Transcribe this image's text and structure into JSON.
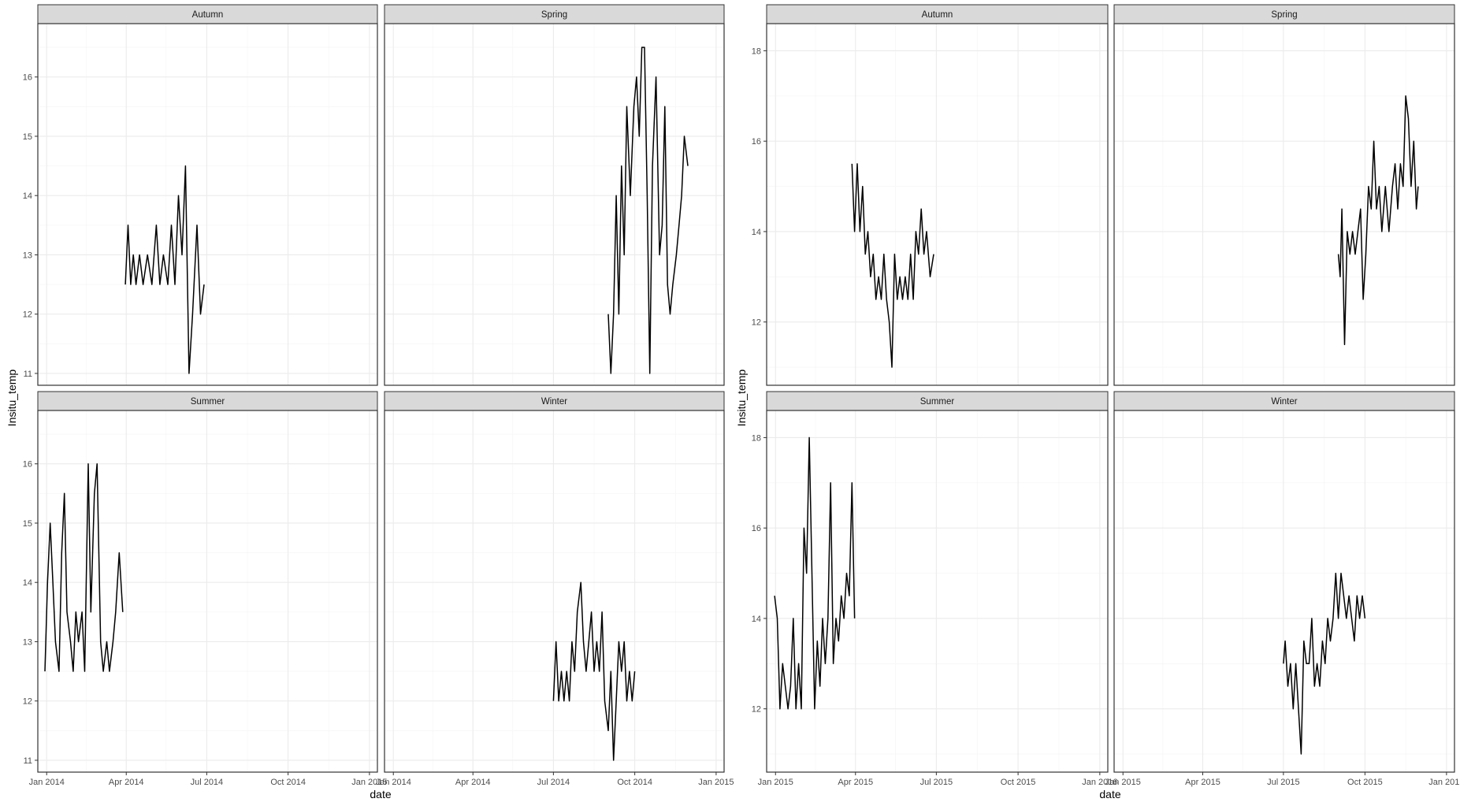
{
  "chart_data": [
    {
      "type": "line",
      "xlabel": "date",
      "ylabel": "Insitu_temp",
      "xlim": [
        "2013-12-22",
        "2015-01-10"
      ],
      "ylim": [
        10.8,
        16.9
      ],
      "x_ticks": [
        "2014-01-01",
        "2014-04-01",
        "2014-07-01",
        "2014-10-01",
        "2015-01-01"
      ],
      "x_tick_labels": [
        "Jan 2014",
        "Apr 2014",
        "Jul 2014",
        "Oct 2014",
        "Jan 2015"
      ],
      "y_ticks": [
        11,
        12,
        13,
        14,
        15,
        16
      ],
      "grid": true,
      "facets": [
        {
          "label": "Autumn",
          "x": [
            "2014-03-31",
            "2014-04-03",
            "2014-04-06",
            "2014-04-09",
            "2014-04-12",
            "2014-04-16",
            "2014-04-20",
            "2014-04-25",
            "2014-04-30",
            "2014-05-05",
            "2014-05-09",
            "2014-05-13",
            "2014-05-18",
            "2014-05-22",
            "2014-05-26",
            "2014-05-30",
            "2014-06-03",
            "2014-06-07",
            "2014-06-11",
            "2014-06-15",
            "2014-06-20",
            "2014-06-24",
            "2014-06-28"
          ],
          "y": [
            12.5,
            13.5,
            12.5,
            13.0,
            12.5,
            13.0,
            12.5,
            13.0,
            12.5,
            13.5,
            12.5,
            13.0,
            12.5,
            13.5,
            12.5,
            14.0,
            13.0,
            14.5,
            11.0,
            12.0,
            13.5,
            12.0,
            12.5
          ]
        },
        {
          "label": "Spring",
          "x": [
            "2014-09-01",
            "2014-09-04",
            "2014-09-07",
            "2014-09-10",
            "2014-09-13",
            "2014-09-16",
            "2014-09-19",
            "2014-09-22",
            "2014-09-26",
            "2014-09-30",
            "2014-10-03",
            "2014-10-06",
            "2014-10-09",
            "2014-10-12",
            "2014-10-15",
            "2014-10-18",
            "2014-10-21",
            "2014-10-25",
            "2014-10-29",
            "2014-11-01",
            "2014-11-04",
            "2014-11-07",
            "2014-11-10",
            "2014-11-13",
            "2014-11-17",
            "2014-11-20",
            "2014-11-23",
            "2014-11-26",
            "2014-11-30"
          ],
          "y": [
            12.0,
            11.0,
            12.0,
            14.0,
            12.0,
            14.5,
            13.0,
            15.5,
            14.0,
            15.5,
            16.0,
            15.0,
            16.5,
            16.5,
            14.0,
            11.0,
            14.5,
            16.0,
            13.0,
            13.5,
            15.5,
            12.5,
            12.0,
            12.5,
            13.0,
            13.5,
            14.0,
            15.0,
            14.5
          ]
        },
        {
          "label": "Summer",
          "x": [
            "2013-12-30",
            "2014-01-02",
            "2014-01-05",
            "2014-01-08",
            "2014-01-11",
            "2014-01-15",
            "2014-01-18",
            "2014-01-21",
            "2014-01-24",
            "2014-01-28",
            "2014-01-31",
            "2014-02-03",
            "2014-02-06",
            "2014-02-10",
            "2014-02-13",
            "2014-02-17",
            "2014-02-20",
            "2014-02-24",
            "2014-02-27",
            "2014-03-03",
            "2014-03-06",
            "2014-03-10",
            "2014-03-13",
            "2014-03-17",
            "2014-03-20",
            "2014-03-24",
            "2014-03-28"
          ],
          "y": [
            12.5,
            14.0,
            15.0,
            14.0,
            13.0,
            12.5,
            14.5,
            15.5,
            13.5,
            13.0,
            12.5,
            13.5,
            13.0,
            13.5,
            12.5,
            16.0,
            13.5,
            15.5,
            16.0,
            13.0,
            12.5,
            13.0,
            12.5,
            13.0,
            13.5,
            14.5,
            13.5
          ]
        },
        {
          "label": "Winter",
          "x": [
            "2014-07-01",
            "2014-07-04",
            "2014-07-07",
            "2014-07-10",
            "2014-07-13",
            "2014-07-16",
            "2014-07-19",
            "2014-07-22",
            "2014-07-25",
            "2014-07-28",
            "2014-08-01",
            "2014-08-04",
            "2014-08-07",
            "2014-08-10",
            "2014-08-13",
            "2014-08-16",
            "2014-08-19",
            "2014-08-22",
            "2014-08-25",
            "2014-08-28",
            "2014-09-01",
            "2014-09-04",
            "2014-09-07",
            "2014-09-10",
            "2014-09-13",
            "2014-09-16",
            "2014-09-19",
            "2014-09-22",
            "2014-09-25",
            "2014-09-28",
            "2014-10-01"
          ],
          "y": [
            12.0,
            13.0,
            12.0,
            12.5,
            12.0,
            12.5,
            12.0,
            13.0,
            12.5,
            13.5,
            14.0,
            13.0,
            12.5,
            13.0,
            13.5,
            12.5,
            13.0,
            12.5,
            13.5,
            12.0,
            11.5,
            12.5,
            11.0,
            12.0,
            13.0,
            12.5,
            13.0,
            12.0,
            12.5,
            12.0,
            12.5
          ]
        }
      ]
    },
    {
      "type": "line",
      "xlabel": "date",
      "ylabel": "Insitu_temp",
      "xlim": [
        "2014-12-22",
        "2016-01-10"
      ],
      "ylim": [
        10.6,
        18.6
      ],
      "x_ticks": [
        "2015-01-01",
        "2015-04-01",
        "2015-07-01",
        "2015-10-01",
        "2016-01-01"
      ],
      "x_tick_labels": [
        "Jan 2015",
        "Apr 2015",
        "Jul 2015",
        "Oct 2015",
        "Jan 2016"
      ],
      "y_ticks": [
        12,
        14,
        16,
        18
      ],
      "grid": true,
      "facets": [
        {
          "label": "Autumn",
          "x": [
            "2015-03-28",
            "2015-03-31",
            "2015-04-03",
            "2015-04-06",
            "2015-04-09",
            "2015-04-12",
            "2015-04-15",
            "2015-04-18",
            "2015-04-21",
            "2015-04-24",
            "2015-04-27",
            "2015-04-30",
            "2015-05-03",
            "2015-05-06",
            "2015-05-09",
            "2015-05-12",
            "2015-05-15",
            "2015-05-18",
            "2015-05-21",
            "2015-05-24",
            "2015-05-27",
            "2015-05-30",
            "2015-06-02",
            "2015-06-05",
            "2015-06-08",
            "2015-06-11",
            "2015-06-14",
            "2015-06-17",
            "2015-06-20",
            "2015-06-24",
            "2015-06-28"
          ],
          "y": [
            15.5,
            14.0,
            15.5,
            14.0,
            15.0,
            13.5,
            14.0,
            13.0,
            13.5,
            12.5,
            13.0,
            12.5,
            13.5,
            12.5,
            12.0,
            11.0,
            13.5,
            12.5,
            13.0,
            12.5,
            13.0,
            12.5,
            13.5,
            12.5,
            14.0,
            13.5,
            14.5,
            13.5,
            14.0,
            13.0,
            13.5
          ]
        },
        {
          "label": "Spring",
          "x": [
            "2015-09-01",
            "2015-09-03",
            "2015-09-05",
            "2015-09-08",
            "2015-09-11",
            "2015-09-14",
            "2015-09-17",
            "2015-09-20",
            "2015-09-23",
            "2015-09-26",
            "2015-09-29",
            "2015-10-02",
            "2015-10-05",
            "2015-10-08",
            "2015-10-11",
            "2015-10-14",
            "2015-10-17",
            "2015-10-20",
            "2015-10-24",
            "2015-10-28",
            "2015-11-01",
            "2015-11-04",
            "2015-11-07",
            "2015-11-10",
            "2015-11-13",
            "2015-11-16",
            "2015-11-19",
            "2015-11-22",
            "2015-11-25",
            "2015-11-28",
            "2015-11-30"
          ],
          "y": [
            13.5,
            13.0,
            14.5,
            11.5,
            14.0,
            13.5,
            14.0,
            13.5,
            14.0,
            14.5,
            12.5,
            13.5,
            15.0,
            14.5,
            16.0,
            14.5,
            15.0,
            14.0,
            15.0,
            14.0,
            15.0,
            15.5,
            14.5,
            15.5,
            15.0,
            17.0,
            16.5,
            15.0,
            16.0,
            14.5,
            15.0
          ]
        },
        {
          "label": "Summer",
          "x": [
            "2014-12-31",
            "2015-01-03",
            "2015-01-06",
            "2015-01-09",
            "2015-01-12",
            "2015-01-15",
            "2015-01-18",
            "2015-01-21",
            "2015-01-24",
            "2015-01-27",
            "2015-01-30",
            "2015-02-02",
            "2015-02-05",
            "2015-02-08",
            "2015-02-11",
            "2015-02-14",
            "2015-02-17",
            "2015-02-20",
            "2015-02-23",
            "2015-02-26",
            "2015-03-01",
            "2015-03-04",
            "2015-03-07",
            "2015-03-10",
            "2015-03-13",
            "2015-03-16",
            "2015-03-19",
            "2015-03-22",
            "2015-03-25",
            "2015-03-28",
            "2015-03-31"
          ],
          "y": [
            14.5,
            14.0,
            12.0,
            13.0,
            12.5,
            12.0,
            12.5,
            14.0,
            12.0,
            13.0,
            12.0,
            16.0,
            15.0,
            18.0,
            15.0,
            12.0,
            13.5,
            12.5,
            14.0,
            13.0,
            14.0,
            17.0,
            13.0,
            14.0,
            13.5,
            14.5,
            14.0,
            15.0,
            14.5,
            17.0,
            14.0
          ]
        },
        {
          "label": "Winter",
          "x": [
            "2015-07-01",
            "2015-07-03",
            "2015-07-06",
            "2015-07-09",
            "2015-07-12",
            "2015-07-15",
            "2015-07-18",
            "2015-07-21",
            "2015-07-24",
            "2015-07-27",
            "2015-07-30",
            "2015-08-02",
            "2015-08-05",
            "2015-08-08",
            "2015-08-11",
            "2015-08-14",
            "2015-08-17",
            "2015-08-20",
            "2015-08-23",
            "2015-08-26",
            "2015-08-29",
            "2015-09-01",
            "2015-09-04",
            "2015-09-07",
            "2015-09-10",
            "2015-09-13",
            "2015-09-16",
            "2015-09-19",
            "2015-09-22",
            "2015-09-25",
            "2015-09-28",
            "2015-10-01"
          ],
          "y": [
            13.0,
            13.5,
            12.5,
            13.0,
            12.0,
            13.0,
            12.0,
            11.0,
            13.5,
            13.0,
            13.0,
            14.0,
            12.5,
            13.0,
            12.5,
            13.5,
            13.0,
            14.0,
            13.5,
            14.0,
            15.0,
            14.0,
            15.0,
            14.5,
            14.0,
            14.5,
            14.0,
            13.5,
            14.5,
            14.0,
            14.5,
            14.0
          ]
        }
      ]
    }
  ]
}
